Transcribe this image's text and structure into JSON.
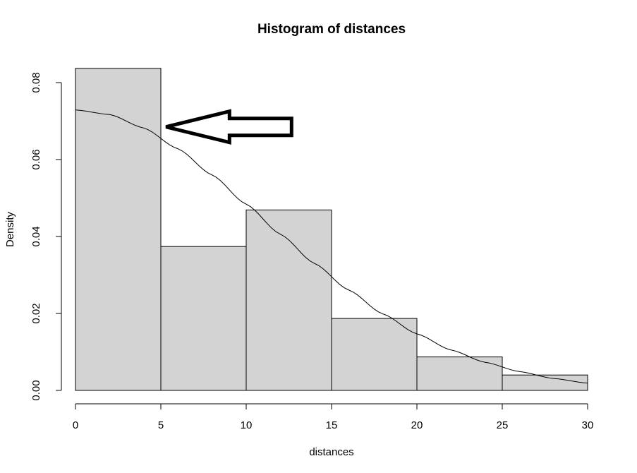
{
  "chart_data": {
    "type": "bar",
    "title": "Histogram of distances",
    "xlabel": "distances",
    "ylabel": "Density",
    "bins": [
      {
        "x0": 0,
        "x1": 5,
        "density": 0.0837
      },
      {
        "x0": 5,
        "x1": 10,
        "density": 0.0374
      },
      {
        "x0": 10,
        "x1": 15,
        "density": 0.0469
      },
      {
        "x0": 15,
        "x1": 20,
        "density": 0.0187
      },
      {
        "x0": 20,
        "x1": 25,
        "density": 0.0087
      },
      {
        "x0": 25,
        "x1": 30,
        "density": 0.004
      }
    ],
    "density_curve": {
      "x": [
        0,
        2,
        4,
        6,
        8,
        10,
        12,
        14,
        16,
        18,
        20,
        22,
        24,
        26,
        28,
        30
      ],
      "y": [
        0.0729,
        0.0717,
        0.0682,
        0.0628,
        0.056,
        0.0484,
        0.0406,
        0.033,
        0.0261,
        0.0199,
        0.0147,
        0.0105,
        0.0073,
        0.0049,
        0.0031,
        0.0019
      ]
    },
    "annotation": {
      "type": "arrow",
      "points_to": {
        "x": 5.3,
        "y": 0.0685
      }
    },
    "x_ticks": [
      "0",
      "5",
      "10",
      "15",
      "20",
      "25",
      "30"
    ],
    "y_ticks": [
      "0.00",
      "0.02",
      "0.04",
      "0.06",
      "0.08"
    ],
    "xlim": [
      0,
      30
    ],
    "ylim": [
      0,
      0.0837
    ],
    "bar_color": "#d3d3d3",
    "grid": false,
    "legend": "none"
  }
}
